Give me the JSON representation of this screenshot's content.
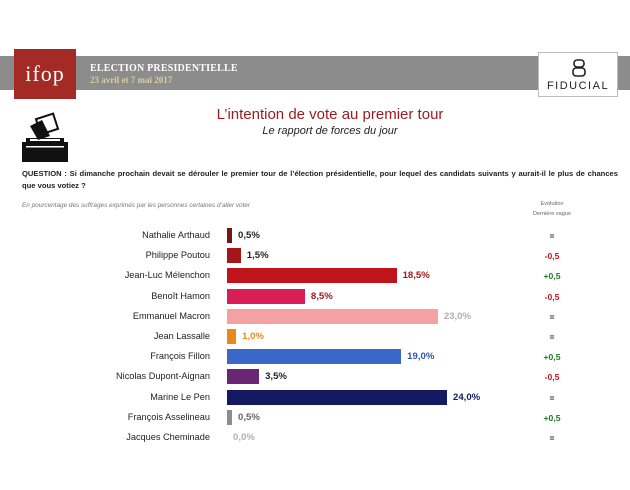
{
  "header": {
    "logo_text": "ifop",
    "election_title": "ELECTION PRESIDENTIELLE",
    "election_dates": "23 avril et 7 mai 2017",
    "partner_name": "FIDUCIAL"
  },
  "titles": {
    "main": "L’intention de vote au premier tour",
    "sub": "Le rapport de forces du jour"
  },
  "question": "QUESTION : Si dimanche prochain devait se dérouler le premier tour de l’élection présidentielle, pour lequel des candidats suivants y aurait-il le plus de chances que vous votiez ?",
  "note": "En pourcentage des suffrages exprimés par les personnes certaines d’aller voter",
  "evolution_header": {
    "line1": "Evolution",
    "line2": "Dernière vague"
  },
  "colors": {
    "header_band": "#8c8c8c",
    "logo_bg": "#a32a25",
    "title": "#9b1b1f",
    "evo_up": "#1a7a1a",
    "evo_down": "#c0141b",
    "evo_same": "#222222"
  },
  "chart_data": {
    "type": "bar",
    "orientation": "horizontal",
    "unit": "%",
    "xlim": [
      0,
      24.0
    ],
    "grid": false,
    "legend": "none",
    "categories": [
      "Nathalie Arthaud",
      "Philippe Poutou",
      "Jean-Luc Mélenchon",
      "Benoît Hamon",
      "Emmanuel Macron",
      "Jean Lassalle",
      "François Fillon",
      "Nicolas Dupont-Aignan",
      "Marine Le Pen",
      "François Asselineau",
      "Jacques Cheminade"
    ],
    "values": [
      0.5,
      1.5,
      18.5,
      8.5,
      23.0,
      1.0,
      19.0,
      3.5,
      24.0,
      0.5,
      0.0
    ],
    "value_labels": [
      "0,5%",
      "1,5%",
      "18,5%",
      "8,5%",
      "23,0%",
      "1,0%",
      "19,0%",
      "3,5%",
      "24,0%",
      "0,5%",
      "0,0%"
    ],
    "bar_colors": [
      "#7b1416",
      "#a4161a",
      "#c0141b",
      "#d81e55",
      "#f4a1a4",
      "#e8891e",
      "#3a68c8",
      "#6a2575",
      "#131a63",
      "#8c8c8c",
      "#cfcfcf"
    ],
    "label_colors": [
      "#222222",
      "#222222",
      "#a4161a",
      "#a4161a",
      "#b0b0b0",
      "#e8891e",
      "#2a55b0",
      "#222222",
      "#131a63",
      "#666666",
      "#b0b0b0"
    ],
    "evolution": [
      "=",
      "-0,5",
      "+0,5",
      "-0,5",
      "=",
      "=",
      "+0,5",
      "-0,5",
      "=",
      "+0,5",
      "="
    ],
    "evolution_direction": [
      "same",
      "down",
      "up",
      "down",
      "same",
      "same",
      "up",
      "down",
      "same",
      "up",
      "same"
    ]
  }
}
